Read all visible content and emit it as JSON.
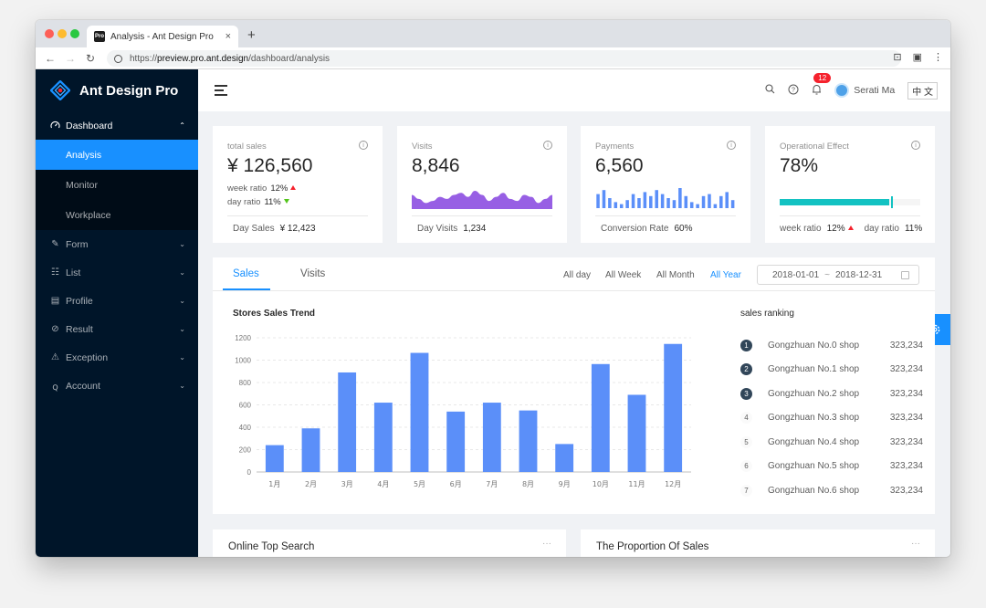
{
  "browser": {
    "tab_title": "Analysis - Ant Design Pro",
    "tab_favicon_text": "Pro",
    "tab_close": "×",
    "new_tab": "+",
    "url_proto": "https://",
    "url_host": "preview.pro.ant.design",
    "url_path": "/dashboard/analysis",
    "traffic_colors": [
      "#fd5f57",
      "#febb2e",
      "#28c840"
    ]
  },
  "app": {
    "title": "Ant Design Pro"
  },
  "sidebar": {
    "items": [
      {
        "label": "Dashboard",
        "icon": "dashboard-icon",
        "expanded": true,
        "children": [
          {
            "label": "Analysis",
            "active": true
          },
          {
            "label": "Monitor"
          },
          {
            "label": "Workplace"
          }
        ]
      },
      {
        "label": "Form",
        "icon": "form-icon"
      },
      {
        "label": "List",
        "icon": "table-icon"
      },
      {
        "label": "Profile",
        "icon": "profile-icon"
      },
      {
        "label": "Result",
        "icon": "check-circle-icon"
      },
      {
        "label": "Exception",
        "icon": "warning-icon"
      },
      {
        "label": "Account",
        "icon": "user-icon"
      }
    ]
  },
  "header": {
    "notification_count": "12",
    "user_name": "Serati Ma",
    "lang": "中 文"
  },
  "stats": [
    {
      "title": "total sales",
      "value": "¥ 126,560",
      "week_label": "week ratio",
      "week_value": "12%",
      "day_label": "day ratio",
      "day_value": "11%",
      "footer_label": "Day Sales",
      "footer_value": "¥ 12,423"
    },
    {
      "title": "Visits",
      "value": "8,846",
      "footer_label": "Day Visits",
      "footer_value": "1,234"
    },
    {
      "title": "Payments",
      "value": "6,560",
      "footer_label": "Conversion Rate",
      "footer_value": "60%"
    },
    {
      "title": "Operational Effect",
      "value": "78%",
      "progress": 0.78,
      "week_label": "week ratio",
      "week_value": "12%",
      "day_label": "day ratio",
      "day_value": "11%"
    }
  ],
  "sales_card": {
    "tabs": [
      "Sales",
      "Visits"
    ],
    "ranges": [
      "All day",
      "All Week",
      "All Month",
      "All Year"
    ],
    "active_range": "All Year",
    "date_start": "2018-01-01",
    "date_sep": "~",
    "date_end": "2018-12-31",
    "chart_title": "Stores Sales Trend",
    "ranking_title": "sales ranking",
    "ranking": [
      {
        "rank": "1",
        "name": "Gongzhuan No.0 shop",
        "value": "323,234"
      },
      {
        "rank": "2",
        "name": "Gongzhuan No.1 shop",
        "value": "323,234"
      },
      {
        "rank": "3",
        "name": "Gongzhuan No.2 shop",
        "value": "323,234"
      },
      {
        "rank": "4",
        "name": "Gongzhuan No.3 shop",
        "value": "323,234"
      },
      {
        "rank": "5",
        "name": "Gongzhuan No.4 shop",
        "value": "323,234"
      },
      {
        "rank": "6",
        "name": "Gongzhuan No.5 shop",
        "value": "323,234"
      },
      {
        "rank": "7",
        "name": "Gongzhuan No.6 shop",
        "value": "323,234"
      }
    ]
  },
  "bottom": {
    "left_title": "Online Top Search",
    "right_title": "The Proportion Of Sales",
    "more": "···"
  },
  "colors": {
    "accent": "#1890ff",
    "bar": "#5b8ff9",
    "area": "#975fe4",
    "progress": "#13c2c2",
    "sidebar": "#001529"
  },
  "chart_data": [
    {
      "type": "bar",
      "title": "Stores Sales Trend",
      "categories": [
        "1月",
        "2月",
        "3月",
        "4月",
        "5月",
        "6月",
        "7月",
        "8月",
        "9月",
        "10月",
        "11月",
        "12月"
      ],
      "values": [
        240,
        390,
        890,
        620,
        1065,
        540,
        620,
        550,
        250,
        965,
        690,
        1145
      ],
      "yticks": [
        0,
        200,
        400,
        600,
        800,
        1000,
        1200
      ],
      "ylim": [
        0,
        1200
      ],
      "grid": true
    },
    {
      "type": "area",
      "values": [
        7,
        5,
        3,
        4,
        6,
        5,
        7,
        8,
        6,
        9,
        7,
        4,
        6,
        8,
        5,
        4,
        7,
        6,
        3,
        5,
        7
      ]
    },
    {
      "type": "bar",
      "values": [
        7,
        9,
        5,
        3,
        2,
        4,
        7,
        5,
        8,
        6,
        9,
        7,
        5,
        4,
        10,
        6,
        3,
        2,
        6,
        7,
        2,
        6,
        8,
        4
      ]
    }
  ]
}
